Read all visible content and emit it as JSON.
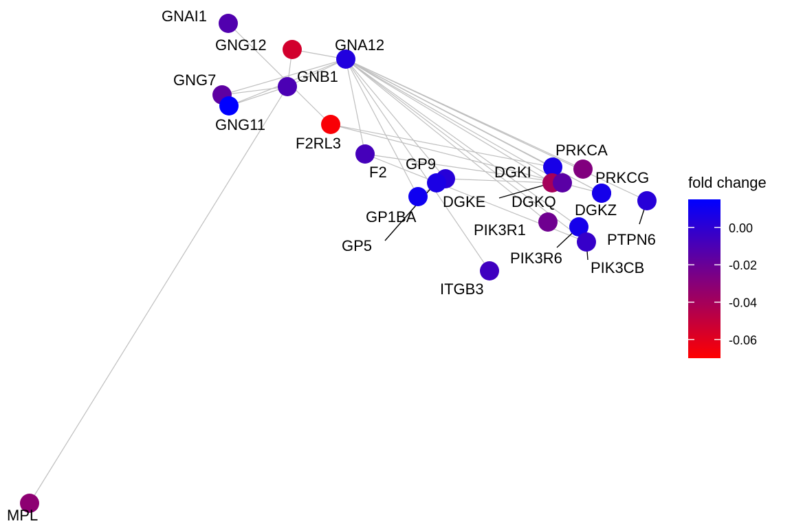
{
  "legend": {
    "title": "fold change",
    "ticks": [
      {
        "value": 0.0,
        "label": "0.00"
      },
      {
        "value": -0.02,
        "label": "-0.02"
      },
      {
        "value": -0.04,
        "label": "-0.04"
      },
      {
        "value": -0.06,
        "label": "-0.06"
      }
    ],
    "min": -0.07,
    "max": 0.015,
    "colors": {
      "high": "#0000ff",
      "low": "#ff0000",
      "edge": "#bebebe",
      "leader": "#000000"
    }
  },
  "nodes": [
    {
      "id": "GNAI1",
      "label": "GNAI1",
      "fold_change": -0.012
    },
    {
      "id": "GNG12",
      "label": "GNG12",
      "fold_change": -0.055
    },
    {
      "id": "GNA12",
      "label": "GNA12",
      "fold_change": 0.004
    },
    {
      "id": "GNG7",
      "label": "GNG7",
      "fold_change": -0.016
    },
    {
      "id": "GNB1",
      "label": "GNB1",
      "fold_change": -0.01
    },
    {
      "id": "GNG11",
      "label": "GNG11",
      "fold_change": 0.015
    },
    {
      "id": "F2RL3",
      "label": "F2RL3",
      "fold_change": -0.068
    },
    {
      "id": "F2",
      "label": "F2",
      "fold_change": -0.008
    },
    {
      "id": "GP9",
      "label": "GP9",
      "fold_change": 0.002
    },
    {
      "id": "GP5",
      "label": "GP5",
      "fold_change": 0.006
    },
    {
      "id": "GP1BA",
      "label": "GP1BA",
      "fold_change": 0.01
    },
    {
      "id": "DGKI",
      "label": "DGKI",
      "fold_change": 0.007
    },
    {
      "id": "DGKE",
      "label": "DGKE",
      "fold_change": -0.04
    },
    {
      "id": "DGKQ",
      "label": "DGKQ",
      "fold_change": -0.015
    },
    {
      "id": "PRKCA",
      "label": "PRKCA",
      "fold_change": -0.028
    },
    {
      "id": "PRKCG",
      "label": "PRKCG",
      "fold_change": -0.01
    },
    {
      "id": "DGKZ",
      "label": "DGKZ",
      "fold_change": 0.008
    },
    {
      "id": "PTPN6",
      "label": "PTPN6",
      "fold_change": 0.002
    },
    {
      "id": "PIK3R1",
      "label": "PIK3R1",
      "fold_change": -0.022
    },
    {
      "id": "PIK3R6",
      "label": "PIK3R6",
      "fold_change": 0.008
    },
    {
      "id": "PIK3CB",
      "label": "PIK3CB",
      "fold_change": -0.003
    },
    {
      "id": "ITGB3",
      "label": "ITGB3",
      "fold_change": -0.006
    },
    {
      "id": "MPL",
      "label": "MPL",
      "fold_change": -0.032
    }
  ],
  "edges": [
    [
      "GNAI1",
      "F2RL3"
    ],
    [
      "GNG12",
      "GNA12"
    ],
    [
      "GNG12",
      "GNB1"
    ],
    [
      "GNG7",
      "GNA12"
    ],
    [
      "GNG7",
      "GNB1"
    ],
    [
      "GNG11",
      "GNA12"
    ],
    [
      "GNG11",
      "GNB1"
    ],
    [
      "GNB1",
      "GNA12"
    ],
    [
      "GNB1",
      "MPL"
    ],
    [
      "GNA12",
      "F2"
    ],
    [
      "GNA12",
      "GP9"
    ],
    [
      "GNA12",
      "GP1BA"
    ],
    [
      "GNA12",
      "ITGB3"
    ],
    [
      "GNA12",
      "DGKI"
    ],
    [
      "GNA12",
      "DGKE"
    ],
    [
      "GNA12",
      "DGKQ"
    ],
    [
      "GNA12",
      "PRKCA"
    ],
    [
      "GNA12",
      "PRKCG"
    ],
    [
      "GNA12",
      "DGKZ"
    ],
    [
      "GNA12",
      "PTPN6"
    ],
    [
      "GNA12",
      "PIK3R1"
    ],
    [
      "GNA12",
      "PIK3R6"
    ],
    [
      "GNA12",
      "PIK3CB"
    ],
    [
      "F2RL3",
      "DGKI"
    ],
    [
      "F2RL3",
      "PRKCG"
    ],
    [
      "F2",
      "DGKQ"
    ],
    [
      "F2",
      "PIK3CB"
    ],
    [
      "GP9",
      "DGKE"
    ],
    [
      "GP1BA",
      "GP9"
    ]
  ]
}
